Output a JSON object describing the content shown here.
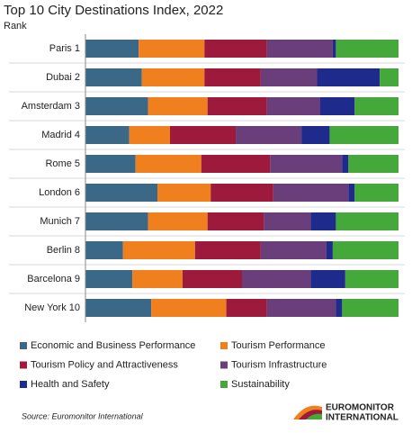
{
  "chart_data": {
    "type": "stacked-bar-horizontal",
    "title": "Top 10 City Destinations Index, 2022",
    "y_axis_label": "Rank",
    "categories": [
      "Paris 1",
      "Dubai 2",
      "Amsterdam 3",
      "Madrid 4",
      "Rome 5",
      "London 6",
      "Munich 7",
      "Berlin 8",
      "Barcelona 9",
      "New York 10"
    ],
    "xlim": [
      0,
      100
    ],
    "series": [
      {
        "name": "Economic and Business Performance",
        "color": "#3b6886",
        "values": [
          17,
          18,
          20,
          14,
          16,
          23,
          20,
          12,
          15,
          21
        ]
      },
      {
        "name": "Tourism Performance",
        "color": "#f07f1e",
        "values": [
          21,
          20,
          19,
          13,
          21,
          17,
          19,
          23,
          16,
          24
        ]
      },
      {
        "name": "Tourism Policy and Attractiveness",
        "color": "#9e1a3c",
        "values": [
          20,
          18,
          19,
          21,
          22,
          20,
          18,
          21,
          19,
          13
        ]
      },
      {
        "name": "Tourism Infrastructure",
        "color": "#6a3e7a",
        "values": [
          21,
          18,
          17,
          21,
          23,
          24,
          15,
          21,
          22,
          22
        ]
      },
      {
        "name": "Health and Safety",
        "color": "#1e2a8c",
        "values": [
          1,
          20,
          11,
          9,
          2,
          2,
          8,
          2,
          11,
          2
        ]
      },
      {
        "name": "Sustainability",
        "color": "#45a83a",
        "values": [
          20,
          6,
          14,
          22,
          16,
          14,
          20,
          21,
          17,
          18
        ]
      }
    ],
    "source": "Source: Euromonitor International",
    "logo": [
      "EUROMONITOR",
      "INTERNATIONAL"
    ]
  }
}
